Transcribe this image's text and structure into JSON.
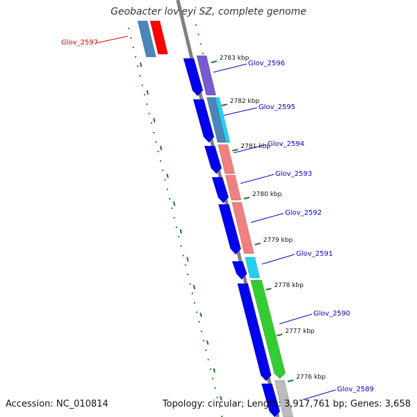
{
  "title": "Geobacter lovleyi SZ, complete genome",
  "accession": {
    "label": "Accession:",
    "value": "NC_010814"
  },
  "topology": {
    "topology_label": "Topology:",
    "topology_value": "circular",
    "length_label": "Length:",
    "length_value": "3,917,761 bp",
    "genes_label": "Genes:",
    "genes_value": "3,658"
  },
  "scale_ticks": [
    "2783 kbp",
    "2782 kbp",
    "2781 kbp",
    "2780 kbp",
    "2779 kbp",
    "2778 kbp",
    "2777 kbp",
    "2776 kbp"
  ],
  "gene_labels": [
    {
      "text": "Glov_2597",
      "color": "#e00000"
    },
    {
      "text": "Glov_2596",
      "color": "#0000c8"
    },
    {
      "text": "Glov_2595",
      "color": "#0000c8"
    },
    {
      "text": "Glov_2594",
      "color": "#0000c8"
    },
    {
      "text": "Glov_2593",
      "color": "#0000c8"
    },
    {
      "text": "Glov_2592",
      "color": "#0000c8"
    },
    {
      "text": "Glov_2591",
      "color": "#0000c8"
    },
    {
      "text": "Glov_2590",
      "color": "#0000c8"
    },
    {
      "text": "Glov_2589",
      "color": "#0000c8"
    }
  ],
  "colors": {
    "backbone": "#808080",
    "cds": "#0000ee",
    "tick": "#1a7a1a",
    "red": "#ff0000",
    "steelblue": "#4a86b8",
    "purple": "#7a5ad0",
    "cyan": "#22d0f0",
    "salmon": "#f07f7f",
    "green": "#33cc33",
    "grey": "#bbbbbb"
  }
}
